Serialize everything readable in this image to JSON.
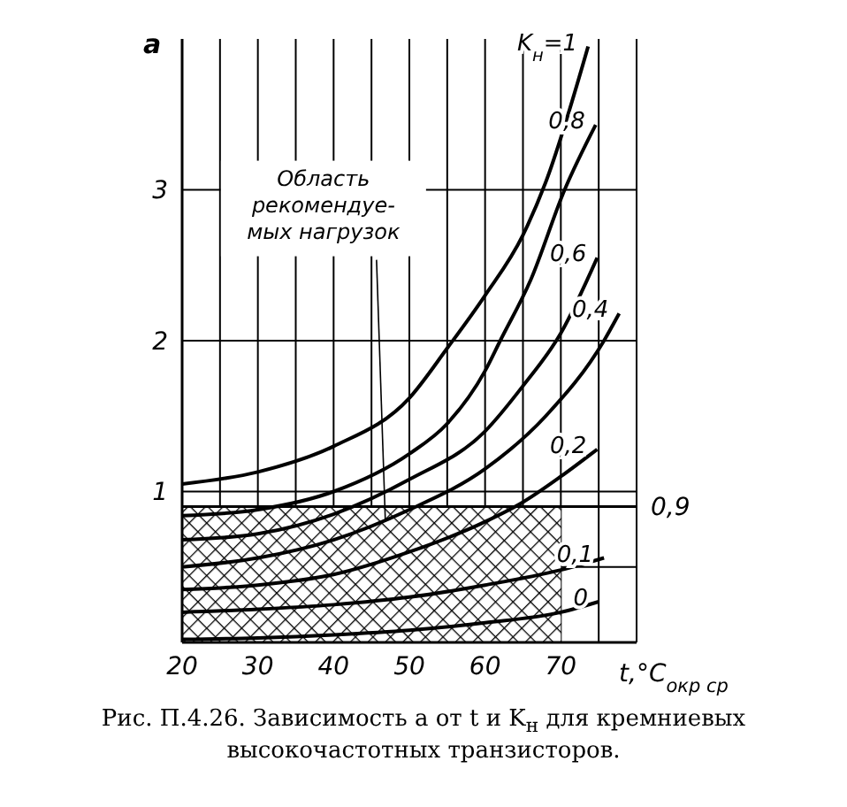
{
  "chart_data": {
    "type": "line",
    "title": "Рис. П.4.26. Зависимость a от t и K$_{н}$ для кремниевых высокочастотных транзисторов.",
    "xlabel": "t,°C$_{окр ср}$",
    "ylabel": "a",
    "xlim": [
      20,
      80
    ],
    "ylim": [
      0,
      4
    ],
    "xticks": [
      20,
      {
        "value": 25,
        "label": null
      },
      30,
      {
        "value": 35,
        "label": null
      },
      40,
      {
        "value": 45,
        "label": null
      },
      50,
      {
        "value": 55,
        "label": null
      },
      60,
      {
        "value": 65,
        "label": null
      },
      70,
      {
        "value": 75,
        "label": null
      },
      {
        "value": 80,
        "label": null
      }
    ],
    "yticks": [
      {
        "value": 0.5,
        "label": null
      },
      1,
      2,
      3
    ],
    "grid": true,
    "marker": "none",
    "line_style": "solid",
    "ref_lines": [
      {
        "axis": "y",
        "value": 0.9,
        "label": "0,9",
        "color": "#000000"
      }
    ],
    "annotations": [
      {
        "text": "Область\nрекомендуе-\nмых нагрузок",
        "x": 48,
        "y": 0.8
      }
    ],
    "series": [
      {
        "type": "area",
        "color": "#000000",
        "x": [
          20,
          70
        ],
        "values": [
          0.9,
          0.9
        ]
      },
      {
        "name": "K$_{н}$=1",
        "color": "#000000",
        "x": [
          20,
          30,
          40,
          50,
          55,
          60,
          65,
          68,
          73.6
        ],
        "values": [
          1.05,
          1.13,
          1.3,
          1.62,
          1.95,
          2.3,
          2.7,
          3.05,
          3.95
        ]
      },
      {
        "name": "0,8",
        "color": "#000000",
        "x": [
          20,
          30,
          40,
          50,
          55,
          60,
          62,
          66,
          70.5,
          74.6
        ],
        "values": [
          0.84,
          0.88,
          1.0,
          1.25,
          1.45,
          1.8,
          2.0,
          2.4,
          3.0,
          3.43
        ]
      },
      {
        "name": "0,6",
        "color": "#000000",
        "x": [
          20,
          30,
          40,
          50,
          60,
          65,
          70,
          74.8
        ],
        "values": [
          0.68,
          0.72,
          0.85,
          1.08,
          1.4,
          1.7,
          2.05,
          2.55
        ]
      },
      {
        "name": "0,4",
        "color": "#000000",
        "x": [
          20,
          30,
          40,
          50,
          60,
          68,
          75.7,
          77.7
        ],
        "values": [
          0.5,
          0.56,
          0.68,
          0.88,
          1.15,
          1.5,
          2.0,
          2.18
        ]
      },
      {
        "name": "0,2",
        "color": "#000000",
        "x": [
          20,
          30,
          40,
          50,
          60,
          65,
          70,
          74.8
        ],
        "values": [
          0.35,
          0.38,
          0.45,
          0.6,
          0.8,
          0.93,
          1.1,
          1.28
        ]
      },
      {
        "name": "0,1",
        "color": "#000000",
        "x": [
          20,
          30,
          40,
          50,
          60,
          70,
          75.7
        ],
        "values": [
          0.2,
          0.22,
          0.25,
          0.3,
          0.38,
          0.48,
          0.56
        ]
      },
      {
        "name": "0",
        "color": "#000000",
        "x": [
          20,
          30,
          40,
          50,
          60,
          70,
          75
        ],
        "values": [
          0.02,
          0.03,
          0.05,
          0.08,
          0.13,
          0.2,
          0.27
        ]
      }
    ]
  }
}
